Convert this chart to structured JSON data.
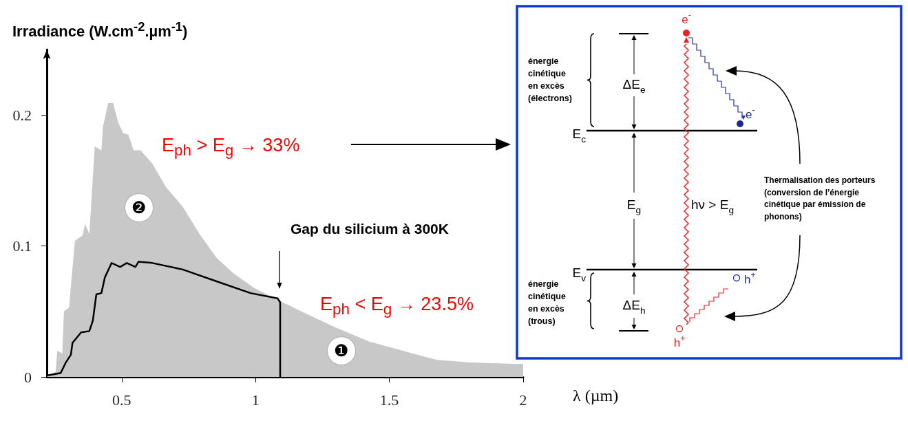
{
  "chart_data": {
    "type": "area",
    "ylabel": "Irradiance (W.cm$^{-2}$.µm$^{-1}$)",
    "xlabel": "λ (µm)",
    "xlim": [
      0.22,
      2.0
    ],
    "xticks": [
      0.5,
      1,
      1.5,
      2
    ],
    "ylim": [
      0,
      0.25
    ],
    "yticks": [
      0,
      0.1,
      0.2
    ],
    "marker": "none",
    "series": [
      {
        "color": "#c8c8c8",
        "x": [
          0.22,
          0.253,
          0.259,
          0.278,
          0.284,
          0.303,
          0.325,
          0.354,
          0.363,
          0.379,
          0.399,
          0.424,
          0.43,
          0.449,
          0.468,
          0.487,
          0.506,
          0.525,
          0.544,
          0.57,
          0.614,
          0.665,
          0.728,
          0.791,
          0.854,
          0.918,
          0.994,
          1.082,
          1.171,
          1.297,
          1.424,
          1.551,
          1.677,
          1.804,
          1.968,
          2.0
        ],
        "values": [
          0,
          0.004,
          0.02,
          0.018,
          0.05,
          0.053,
          0.104,
          0.108,
          0.117,
          0.109,
          0.176,
          0.173,
          0.191,
          0.209,
          0.209,
          0.194,
          0.186,
          0.185,
          0.173,
          0.173,
          0.163,
          0.145,
          0.13,
          0.109,
          0.091,
          0.079,
          0.068,
          0.059,
          0.05,
          0.038,
          0.027,
          0.02,
          0.013,
          0.011,
          0.01,
          0.01
        ]
      },
      {
        "type": "line",
        "color": "#000000",
        "x": [
          0.22,
          0.272,
          0.291,
          0.31,
          0.316,
          0.348,
          0.379,
          0.392,
          0.405,
          0.424,
          0.437,
          0.462,
          0.494,
          0.519,
          0.551,
          0.563,
          0.614,
          0.728,
          0.854,
          0.981,
          1.082,
          1.092,
          1.092
        ],
        "values": [
          0.001,
          0.003,
          0.011,
          0.017,
          0.026,
          0.034,
          0.035,
          0.043,
          0.063,
          0.064,
          0.076,
          0.087,
          0.084,
          0.087,
          0.084,
          0.088,
          0.087,
          0.082,
          0.073,
          0.064,
          0.06,
          0.057,
          0
        ]
      }
    ],
    "annotations": [
      "E$_{ph}$ > E$_{g}$ → 33%",
      "E$_{ph}$ < E$_{g}$ → 23.5%",
      "Gap du silicium à 300K",
      {
        "text": "❷",
        "x": 0.564,
        "y": 0.129
      },
      {
        "text": "❶",
        "x": 1.322,
        "y": 0.02
      },
      "énergie cinétique en excès (électrons)",
      "ΔE$_{e}$",
      "E$_{c}$",
      "E$_{g}$",
      "hν > E$_{g}$",
      "e$^{-}$",
      "e$^{-}$",
      "E$_{v}$",
      "énergie cinétique en excès (trous)",
      "ΔE$_{h}$",
      "h$^{+}$",
      "h$^{+}$",
      "Thermalisation des porteurs (conversion de l’énergie cinétique par émission de phonons)"
    ]
  }
}
